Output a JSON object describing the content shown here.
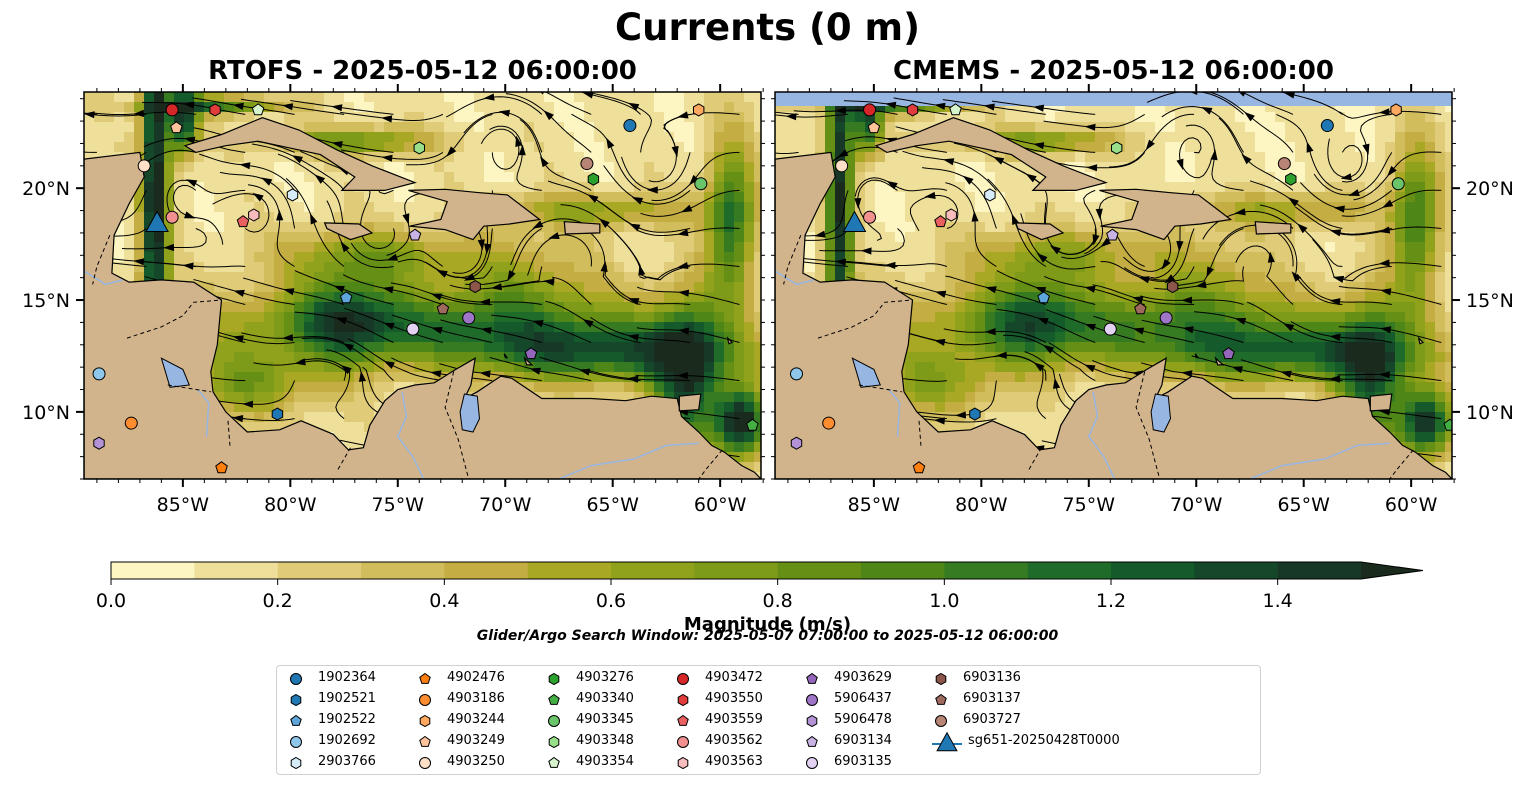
{
  "title": "Currents (0 m)",
  "panels": [
    {
      "title": "RTOFS - 2025-05-12 06:00:00"
    },
    {
      "title": "CMEMS - 2025-05-12 06:00:00"
    }
  ],
  "axes": {
    "lon_ticks": [
      "85°W",
      "80°W",
      "75°W",
      "70°W",
      "65°W",
      "60°W"
    ],
    "lat_ticks": [
      "20°N",
      "15°N",
      "10°N"
    ]
  },
  "colorbar": {
    "label": "Magnitude (m/s)",
    "ticks": [
      "0.0",
      "0.2",
      "0.4",
      "0.6",
      "0.8",
      "1.0",
      "1.2",
      "1.4"
    ],
    "range": [
      0,
      1.5
    ],
    "extend": "max",
    "colors": [
      "#fdf6c3",
      "#eee09b",
      "#e0cc78",
      "#d2bd5c",
      "#c4ad42",
      "#a9a825",
      "#90a21c",
      "#7d9a18",
      "#669015",
      "#4e8718",
      "#367b22",
      "#1f6b29",
      "#145a2a",
      "#15472a",
      "#173826",
      "#1a2a1d"
    ]
  },
  "search_window": "Glider/Argo Search Window: 2025-05-07 07:00:00 to 2025-05-12 06:00:00",
  "colors": {
    "land": "#d2b48c",
    "lakes": "#97b6e1",
    "rivers": "#97b6e1"
  },
  "legend": [
    {
      "label": "1902364",
      "marker": "circle",
      "color": "#1f77b4"
    },
    {
      "label": "1902521",
      "marker": "hexagon",
      "color": "#1f77b4"
    },
    {
      "label": "1902522",
      "marker": "pentagon",
      "color": "#5da5da"
    },
    {
      "label": "1902692",
      "marker": "circle",
      "color": "#8ec7ea"
    },
    {
      "label": "2903766",
      "marker": "hexagon",
      "color": "#d6ecfa"
    },
    {
      "label": "4902476",
      "marker": "pentagon",
      "color": "#ff7f0e"
    },
    {
      "label": "4903186",
      "marker": "circle",
      "color": "#ff8c2e"
    },
    {
      "label": "4903244",
      "marker": "hexagon",
      "color": "#ffa860"
    },
    {
      "label": "4903249",
      "marker": "pentagon",
      "color": "#ffc49a"
    },
    {
      "label": "4903250",
      "marker": "circle",
      "color": "#ffdfc8"
    },
    {
      "label": "4903276",
      "marker": "hexagon",
      "color": "#2ca02c"
    },
    {
      "label": "4903340",
      "marker": "pentagon",
      "color": "#44b044"
    },
    {
      "label": "4903345",
      "marker": "circle",
      "color": "#6ac46a"
    },
    {
      "label": "4903348",
      "marker": "hexagon",
      "color": "#98df8a"
    },
    {
      "label": "4903354",
      "marker": "pentagon",
      "color": "#d7f5cd"
    },
    {
      "label": "4903472",
      "marker": "circle",
      "color": "#d62728"
    },
    {
      "label": "4903550",
      "marker": "hexagon",
      "color": "#e03c3c"
    },
    {
      "label": "4903559",
      "marker": "pentagon",
      "color": "#ea6060"
    },
    {
      "label": "4903562",
      "marker": "circle",
      "color": "#f29090"
    },
    {
      "label": "4903563",
      "marker": "hexagon",
      "color": "#f8bcbc"
    },
    {
      "label": "4903629",
      "marker": "pentagon",
      "color": "#9467bd"
    },
    {
      "label": "5906437",
      "marker": "circle",
      "color": "#9f75c8"
    },
    {
      "label": "5906478",
      "marker": "hexagon",
      "color": "#b393d5"
    },
    {
      "label": "6903134",
      "marker": "pentagon",
      "color": "#c9b2e4"
    },
    {
      "label": "6903135",
      "marker": "circle",
      "color": "#e4d2f5"
    },
    {
      "label": "6903136",
      "marker": "hexagon",
      "color": "#8c564b"
    },
    {
      "label": "6903137",
      "marker": "pentagon",
      "color": "#9e6a5e"
    },
    {
      "label": "6903727",
      "marker": "circle",
      "color": "#b88476"
    },
    {
      "label": "sg651-20250428T0000",
      "marker": "triangle",
      "color": "#1f77b4"
    }
  ],
  "markers": [
    {
      "id": "4903472",
      "lon": -85.5,
      "lat": 23.5
    },
    {
      "id": "4903550",
      "lon": -83.5,
      "lat": 23.5
    },
    {
      "id": "4903354",
      "lon": -81.5,
      "lat": 23.5
    },
    {
      "id": "4903249",
      "lon": -85.3,
      "lat": 22.7
    },
    {
      "id": "1902364",
      "lon": -64.2,
      "lat": 22.8
    },
    {
      "id": "4903244",
      "lon": -61.0,
      "lat": 23.5
    },
    {
      "id": "4903348",
      "lon": -74.0,
      "lat": 21.8
    },
    {
      "id": "6903727",
      "lon": -66.2,
      "lat": 21.1
    },
    {
      "id": "4903276",
      "lon": -65.9,
      "lat": 20.4
    },
    {
      "id": "4903345",
      "lon": -60.9,
      "lat": 20.2
    },
    {
      "id": "4903250",
      "lon": -86.8,
      "lat": 21.0
    },
    {
      "id": "2903766",
      "lon": -79.9,
      "lat": 19.7
    },
    {
      "id": "4903562",
      "lon": -85.5,
      "lat": 18.7
    },
    {
      "id": "4903563",
      "lon": -81.7,
      "lat": 18.8
    },
    {
      "id": "4903559",
      "lon": -82.2,
      "lat": 18.5
    },
    {
      "id": "6903134",
      "lon": -74.2,
      "lat": 17.9
    },
    {
      "id": "1902522",
      "lon": -77.4,
      "lat": 15.1
    },
    {
      "id": "6903136",
      "lon": -71.4,
      "lat": 15.6
    },
    {
      "id": "6903137",
      "lon": -72.9,
      "lat": 14.6
    },
    {
      "id": "5906437",
      "lon": -71.7,
      "lat": 14.2
    },
    {
      "id": "6903135",
      "lon": -74.3,
      "lat": 13.7
    },
    {
      "id": "4903629",
      "lon": -68.8,
      "lat": 12.6
    },
    {
      "id": "1902692",
      "lon": -88.9,
      "lat": 11.7
    },
    {
      "id": "1902521",
      "lon": -80.6,
      "lat": 9.9
    },
    {
      "id": "4903186",
      "lon": -87.4,
      "lat": 9.5
    },
    {
      "id": "5906478",
      "lon": -88.9,
      "lat": 8.6
    },
    {
      "id": "4902476",
      "lon": -83.2,
      "lat": 7.5
    },
    {
      "id": "4903340",
      "lon": -58.5,
      "lat": 9.4
    },
    {
      "id": "sg651-20250428T0000",
      "lon": -86.2,
      "lat": 18.4
    }
  ]
}
